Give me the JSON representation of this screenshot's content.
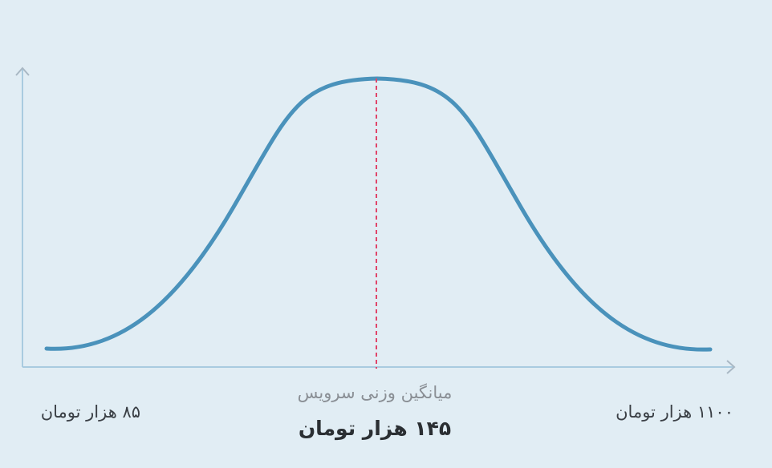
{
  "min_label": "۸۵ هزار تومان",
  "max_label": "۱۱۰۰ هزار تومان",
  "average": {
    "caption": "میانگین وزنی سرویس",
    "value": "۱۴۵ هزار تومان"
  }
}
